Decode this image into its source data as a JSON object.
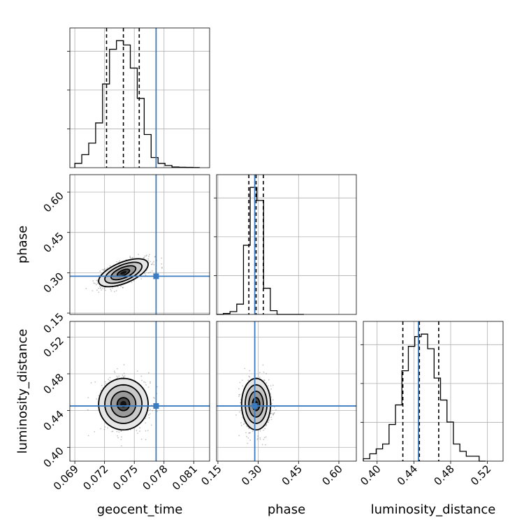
{
  "chart_data": {
    "type": "corner",
    "parameters": [
      "geocent_time",
      "phase",
      "luminosity_distance"
    ],
    "axis_labels": {
      "geocent_time": "geocent_time",
      "phase": "phase",
      "luminosity_distance": "luminosity_distance"
    },
    "ranges": {
      "geocent_time": [
        0.0685,
        0.0826
      ],
      "phase": [
        0.145,
        0.665
      ],
      "luminosity_distance": [
        0.385,
        0.537
      ]
    },
    "ticks": {
      "geocent_time": [
        "0.069",
        "0.072",
        "0.075",
        "0.078",
        "0.081"
      ],
      "phase": [
        "0.15",
        "0.30",
        "0.45",
        "0.60"
      ],
      "luminosity_distance": [
        "0.40",
        "0.44",
        "0.48",
        "0.52"
      ]
    },
    "truths": {
      "geocent_time": 0.0772,
      "phase": 0.287,
      "luminosity_distance": 0.445
    },
    "quantiles": {
      "geocent_time": [
        0.0722,
        0.0739,
        0.0755
      ],
      "phase": [
        0.265,
        0.292,
        0.319
      ],
      "luminosity_distance": [
        0.428,
        0.446,
        0.467
      ]
    },
    "histograms": {
      "geocent_time": {
        "edges": [
          0.069,
          0.0697,
          0.0704,
          0.0711,
          0.0718,
          0.0725,
          0.0732,
          0.0739,
          0.0746,
          0.0753,
          0.076,
          0.0767,
          0.0774,
          0.0781,
          0.0788,
          0.0795,
          0.0802,
          0.0809,
          0.0816
        ],
        "counts": [
          3,
          9,
          17,
          31,
          58,
          82,
          88,
          85,
          69,
          48,
          23,
          7,
          3,
          1.5,
          0.5,
          0.3,
          0.2,
          0.1
        ]
      },
      "phase": {
        "edges": [
          0.145,
          0.17,
          0.195,
          0.22,
          0.245,
          0.27,
          0.295,
          0.32,
          0.345,
          0.37,
          0.395,
          0.42,
          0.445,
          0.47
        ],
        "counts": [
          0,
          1,
          3,
          11,
          74,
          136,
          122,
          28,
          4,
          0,
          0,
          0,
          0
        ]
      },
      "luminosity_distance": {
        "edges": [
          0.385,
          0.392,
          0.399,
          0.406,
          0.413,
          0.42,
          0.427,
          0.434,
          0.441,
          0.448,
          0.455,
          0.462,
          0.469,
          0.476,
          0.483,
          0.49,
          0.497,
          0.504,
          0.511,
          0.518
        ],
        "counts": [
          1,
          3,
          5,
          7,
          15,
          23,
          37,
          47,
          51,
          52,
          46,
          34,
          25,
          16,
          7,
          4,
          2,
          2,
          0
        ]
      }
    },
    "density_2d": {
      "geocent_time-phase": {
        "center": [
          0.0739,
          0.3
        ],
        "spread": [
          0.00125,
          0.026
        ],
        "correlation": 0.6
      },
      "geocent_time-luminosity_distance": {
        "center": [
          0.0739,
          0.447
        ],
        "spread": [
          0.00125,
          0.014
        ],
        "correlation": 0.0
      },
      "phase-luminosity_distance": {
        "center": [
          0.292,
          0.447
        ],
        "spread": [
          0.027,
          0.014
        ],
        "correlation": 0.0
      }
    },
    "grid": true,
    "legend": "none"
  }
}
